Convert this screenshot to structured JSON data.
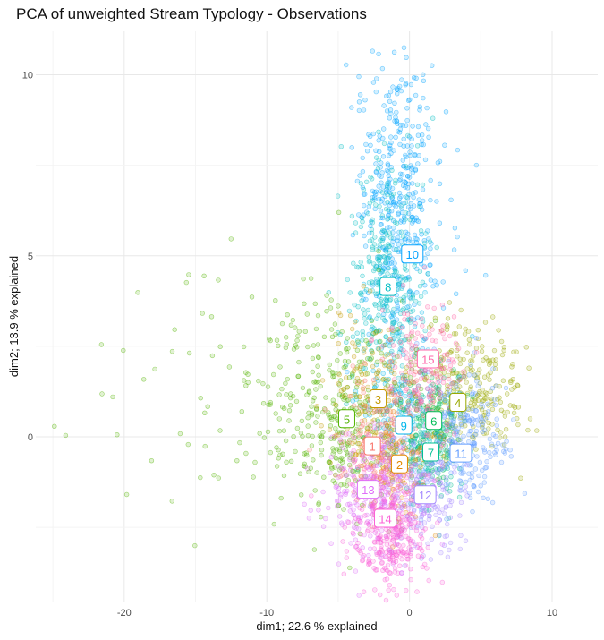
{
  "title": "PCA of unweighted Stream Typology - Observations",
  "chart_data": {
    "type": "scatter",
    "title": "PCA of unweighted Stream Typology - Observations",
    "xlabel": "dim1; 22.6 % explained",
    "ylabel": "dim2; 13.9 % explained",
    "xlim": [
      -26.2,
      13.2
    ],
    "ylim": [
      -4.55,
      11.2
    ],
    "x_ticks": [
      -20,
      -10,
      0,
      10
    ],
    "y_ticks": [
      0,
      5,
      10
    ],
    "x_tick_labels": [
      "-20",
      "-10",
      "0",
      "10"
    ],
    "y_tick_labels": [
      "0",
      "5",
      "10"
    ],
    "grid": true,
    "legend": "none",
    "point_alpha": 0.25,
    "cluster_centers": [
      {
        "label": "1",
        "x": -2.6,
        "y": -0.25,
        "color": "#F8766D"
      },
      {
        "label": "2",
        "x": -0.7,
        "y": -0.75,
        "color": "#E38900"
      },
      {
        "label": "3",
        "x": -2.2,
        "y": 1.05,
        "color": "#C49A00"
      },
      {
        "label": "4",
        "x": 3.4,
        "y": 0.95,
        "color": "#99A800"
      },
      {
        "label": "5",
        "x": -4.4,
        "y": 0.5,
        "color": "#53B400"
      },
      {
        "label": "6",
        "x": 1.7,
        "y": 0.45,
        "color": "#00BC56"
      },
      {
        "label": "7",
        "x": 1.5,
        "y": -0.42,
        "color": "#00C094"
      },
      {
        "label": "8",
        "x": -1.5,
        "y": 4.15,
        "color": "#00BFC4"
      },
      {
        "label": "9",
        "x": -0.4,
        "y": 0.32,
        "color": "#00B6EB"
      },
      {
        "label": "10",
        "x": 0.2,
        "y": 5.05,
        "color": "#06A4FF"
      },
      {
        "label": "11",
        "x": 3.6,
        "y": -0.45,
        "color": "#619CFF"
      },
      {
        "label": "12",
        "x": 1.1,
        "y": -1.6,
        "color": "#A58AFF"
      },
      {
        "label": "13",
        "x": -2.9,
        "y": -1.45,
        "color": "#DF70F8"
      },
      {
        "label": "14",
        "x": -1.7,
        "y": -2.25,
        "color": "#FB61D7"
      },
      {
        "label": "15",
        "x": 1.3,
        "y": 2.15,
        "color": "#FF66A8"
      }
    ],
    "regions": [
      {
        "cluster": "10",
        "cx": -0.8,
        "cy": 6.5,
        "sx": 1.5,
        "sy": 2.0,
        "n": 420
      },
      {
        "cluster": "8",
        "cx": -1.6,
        "cy": 4.0,
        "sx": 1.4,
        "sy": 1.8,
        "n": 340
      },
      {
        "cluster": "9",
        "cx": -0.6,
        "cy": 1.0,
        "sx": 1.6,
        "sy": 1.2,
        "n": 160
      },
      {
        "cluster": "5",
        "cx": -4.5,
        "cy": 0.6,
        "sx": 2.8,
        "sy": 1.5,
        "n": 380
      },
      {
        "cluster": "3",
        "cx": -2.5,
        "cy": 1.0,
        "sx": 1.6,
        "sy": 1.1,
        "n": 160
      },
      {
        "cluster": "4",
        "cx": 4.0,
        "cy": 1.3,
        "sx": 1.8,
        "sy": 0.9,
        "n": 280
      },
      {
        "cluster": "6",
        "cx": 1.8,
        "cy": 0.4,
        "sx": 1.2,
        "sy": 0.8,
        "n": 140
      },
      {
        "cluster": "7",
        "cx": 1.5,
        "cy": -0.4,
        "sx": 1.1,
        "sy": 0.7,
        "n": 120
      },
      {
        "cluster": "11",
        "cx": 3.6,
        "cy": 0.0,
        "sx": 1.6,
        "sy": 0.9,
        "n": 260
      },
      {
        "cluster": "15",
        "cx": 1.0,
        "cy": 1.8,
        "sx": 1.5,
        "sy": 1.0,
        "n": 200
      },
      {
        "cluster": "1",
        "cx": -2.4,
        "cy": -0.4,
        "sx": 1.3,
        "sy": 0.9,
        "n": 140
      },
      {
        "cluster": "2",
        "cx": -0.8,
        "cy": -0.8,
        "sx": 1.1,
        "sy": 0.8,
        "n": 120
      },
      {
        "cluster": "12",
        "cx": 1.0,
        "cy": -1.6,
        "sx": 1.5,
        "sy": 0.8,
        "n": 200
      },
      {
        "cluster": "13",
        "cx": -2.6,
        "cy": -1.6,
        "sx": 1.7,
        "sy": 0.9,
        "n": 260
      },
      {
        "cluster": "14",
        "cx": -1.5,
        "cy": -2.6,
        "sx": 1.3,
        "sy": 0.9,
        "n": 320
      },
      {
        "cluster": "5",
        "cx": -14.0,
        "cy": 1.2,
        "sx": 5.0,
        "sy": 2.0,
        "n": 70
      }
    ]
  }
}
